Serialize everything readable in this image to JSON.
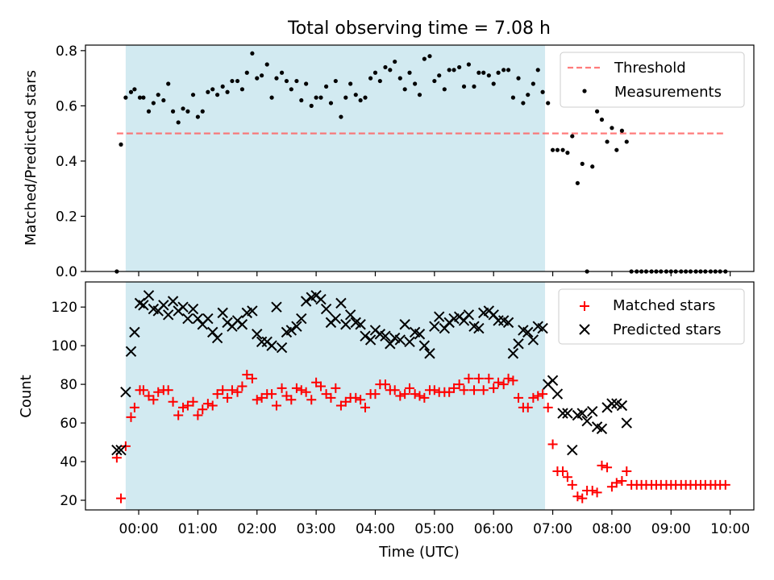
{
  "chart_data": [
    {
      "type": "scatter",
      "title": "Total observing time = 7.08 h",
      "ylabel": "Matched/Predicted stars",
      "xlabel": "",
      "xunit": "hours (UTC)",
      "xlim": [
        -0.9,
        10.4
      ],
      "ylim": [
        0,
        0.82
      ],
      "yticks": [
        0.0,
        0.2,
        0.4,
        0.6,
        0.8
      ],
      "ytick_labels": [
        "0.0",
        "0.2",
        "0.4",
        "0.6",
        "0.8"
      ],
      "shaded_interval": [
        -0.22,
        6.87
      ],
      "shaded_color": "#add8e6",
      "legend_position": "upper right",
      "series": [
        {
          "name": "Threshold",
          "kind": "dashed-line",
          "color": "#ff6666",
          "x": [
            -0.37,
            9.92
          ],
          "y": [
            0.5,
            0.5
          ]
        },
        {
          "name": "Measurements",
          "kind": "dots",
          "color": "#000000",
          "x": [
            -0.37,
            -0.3,
            -0.22,
            -0.13,
            -0.07,
            0.02,
            0.08,
            0.17,
            0.25,
            0.33,
            0.42,
            0.5,
            0.58,
            0.67,
            0.75,
            0.83,
            0.92,
            1.0,
            1.08,
            1.17,
            1.25,
            1.33,
            1.42,
            1.5,
            1.58,
            1.67,
            1.75,
            1.83,
            1.92,
            2.0,
            2.08,
            2.17,
            2.25,
            2.33,
            2.42,
            2.5,
            2.58,
            2.67,
            2.75,
            2.83,
            2.92,
            3.0,
            3.08,
            3.17,
            3.25,
            3.33,
            3.42,
            3.5,
            3.58,
            3.67,
            3.75,
            3.83,
            3.92,
            4.0,
            4.08,
            4.17,
            4.25,
            4.33,
            4.42,
            4.5,
            4.58,
            4.67,
            4.75,
            4.83,
            4.92,
            5.0,
            5.08,
            5.17,
            5.25,
            5.33,
            5.42,
            5.5,
            5.58,
            5.67,
            5.75,
            5.83,
            5.92,
            6.0,
            6.08,
            6.17,
            6.25,
            6.33,
            6.42,
            6.5,
            6.58,
            6.67,
            6.75,
            6.83,
            6.92,
            7.0,
            7.08,
            7.17,
            7.25,
            7.33,
            7.42,
            7.5,
            7.58,
            7.67,
            7.75,
            7.83,
            7.92,
            8.0,
            8.08,
            8.17,
            8.25,
            8.33,
            8.42,
            8.5,
            8.58,
            8.67,
            8.75,
            8.83,
            8.92,
            9.0,
            9.08,
            9.17,
            9.25,
            9.33,
            9.42,
            9.5,
            9.58,
            9.67,
            9.75,
            9.83,
            9.92
          ],
          "y": [
            0.0,
            0.46,
            0.63,
            0.65,
            0.66,
            0.63,
            0.63,
            0.58,
            0.61,
            0.64,
            0.62,
            0.68,
            0.58,
            0.54,
            0.59,
            0.58,
            0.64,
            0.56,
            0.58,
            0.65,
            0.66,
            0.64,
            0.67,
            0.65,
            0.69,
            0.69,
            0.66,
            0.72,
            0.79,
            0.7,
            0.71,
            0.75,
            0.63,
            0.7,
            0.72,
            0.69,
            0.66,
            0.69,
            0.62,
            0.68,
            0.6,
            0.63,
            0.63,
            0.67,
            0.61,
            0.69,
            0.56,
            0.63,
            0.68,
            0.64,
            0.62,
            0.63,
            0.7,
            0.72,
            0.69,
            0.74,
            0.73,
            0.76,
            0.7,
            0.66,
            0.72,
            0.68,
            0.64,
            0.77,
            0.78,
            0.69,
            0.71,
            0.66,
            0.73,
            0.73,
            0.74,
            0.67,
            0.75,
            0.67,
            0.72,
            0.72,
            0.71,
            0.68,
            0.72,
            0.73,
            0.73,
            0.63,
            0.7,
            0.61,
            0.64,
            0.68,
            0.73,
            0.65,
            0.61,
            0.44,
            0.44,
            0.44,
            0.43,
            0.49,
            0.32,
            0.39,
            0.0,
            0.38,
            0.58,
            0.55,
            0.47,
            0.52,
            0.44,
            0.51,
            0.47,
            0.0,
            0.0,
            0.0,
            0.0,
            0.0,
            0.0,
            0.0,
            0.0,
            0.0,
            0.0,
            0.0,
            0.0,
            0.0,
            0.0,
            0.0,
            0.0,
            0.0,
            0.0,
            0.0,
            0.0
          ]
        }
      ]
    },
    {
      "type": "scatter",
      "title": "",
      "ylabel": "Count",
      "xlabel": "Time (UTC)",
      "xunit": "hours (UTC)",
      "xlim": [
        -0.9,
        10.4
      ],
      "ylim": [
        15,
        133
      ],
      "yticks": [
        20,
        40,
        60,
        80,
        100,
        120
      ],
      "ytick_labels": [
        "20",
        "40",
        "60",
        "80",
        "100",
        "120"
      ],
      "xticks": [
        0,
        1,
        2,
        3,
        4,
        5,
        6,
        7,
        8,
        9,
        10
      ],
      "xtick_labels": [
        "00:00",
        "01:00",
        "02:00",
        "03:00",
        "04:00",
        "05:00",
        "06:00",
        "07:00",
        "08:00",
        "09:00",
        "10:00"
      ],
      "shaded_interval": [
        -0.22,
        6.87
      ],
      "shaded_color": "#add8e6",
      "legend_position": "upper right",
      "series": [
        {
          "name": "Matched stars",
          "kind": "plus",
          "color": "#ff0000",
          "x": [
            -0.37,
            -0.3,
            -0.22,
            -0.13,
            -0.07,
            0.02,
            0.08,
            0.17,
            0.25,
            0.33,
            0.42,
            0.5,
            0.58,
            0.67,
            0.75,
            0.83,
            0.92,
            1.0,
            1.08,
            1.17,
            1.25,
            1.33,
            1.42,
            1.5,
            1.58,
            1.67,
            1.75,
            1.83,
            1.92,
            2.0,
            2.08,
            2.17,
            2.25,
            2.33,
            2.42,
            2.5,
            2.58,
            2.67,
            2.75,
            2.83,
            2.92,
            3.0,
            3.08,
            3.17,
            3.25,
            3.33,
            3.42,
            3.5,
            3.58,
            3.67,
            3.75,
            3.83,
            3.92,
            4.0,
            4.08,
            4.17,
            4.25,
            4.33,
            4.42,
            4.5,
            4.58,
            4.67,
            4.75,
            4.83,
            4.92,
            5.0,
            5.08,
            5.17,
            5.25,
            5.33,
            5.42,
            5.5,
            5.58,
            5.67,
            5.75,
            5.83,
            5.92,
            6.0,
            6.08,
            6.17,
            6.25,
            6.33,
            6.42,
            6.5,
            6.58,
            6.67,
            6.75,
            6.83,
            6.92,
            7.0,
            7.08,
            7.17,
            7.25,
            7.33,
            7.42,
            7.5,
            7.58,
            7.67,
            7.75,
            7.83,
            7.92,
            8.0,
            8.08,
            8.17,
            8.25,
            8.33,
            8.42,
            8.5,
            8.58,
            8.67,
            8.75,
            8.83,
            8.92,
            9.0,
            9.08,
            9.17,
            9.25,
            9.33,
            9.42,
            9.5,
            9.58,
            9.67,
            9.75,
            9.83,
            9.92
          ],
          "y": [
            42,
            21,
            48,
            63,
            68,
            77,
            77,
            74,
            72,
            76,
            77,
            77,
            71,
            64,
            68,
            69,
            71,
            64,
            67,
            70,
            69,
            75,
            77,
            73,
            77,
            76,
            79,
            85,
            83,
            72,
            73,
            75,
            75,
            69,
            78,
            74,
            72,
            78,
            77,
            76,
            72,
            81,
            79,
            75,
            73,
            78,
            69,
            71,
            73,
            73,
            72,
            68,
            75,
            75,
            80,
            80,
            77,
            77,
            74,
            75,
            78,
            75,
            74,
            73,
            77,
            77,
            76,
            76,
            76,
            78,
            80,
            77,
            83,
            77,
            83,
            77,
            83,
            78,
            81,
            80,
            83,
            82,
            73,
            68,
            68,
            73,
            74,
            75,
            68,
            49,
            35,
            35,
            32,
            28,
            22,
            21,
            25,
            25,
            24,
            38,
            37,
            27,
            29,
            30,
            35,
            28,
            28,
            28,
            28,
            28,
            28,
            28,
            28,
            28,
            28,
            28,
            28,
            28,
            28,
            28,
            28,
            28,
            28,
            28,
            28
          ]
        },
        {
          "name": "Predicted stars",
          "kind": "cross",
          "color": "#000000",
          "x": [
            -0.37,
            -0.3,
            -0.22,
            -0.13,
            -0.07,
            0.02,
            0.08,
            0.17,
            0.25,
            0.33,
            0.42,
            0.5,
            0.58,
            0.67,
            0.75,
            0.83,
            0.92,
            1.0,
            1.08,
            1.17,
            1.25,
            1.33,
            1.42,
            1.5,
            1.58,
            1.67,
            1.75,
            1.83,
            1.92,
            2.0,
            2.08,
            2.17,
            2.25,
            2.33,
            2.42,
            2.5,
            2.58,
            2.67,
            2.75,
            2.83,
            2.92,
            3.0,
            3.08,
            3.17,
            3.25,
            3.33,
            3.42,
            3.5,
            3.58,
            3.67,
            3.75,
            3.83,
            3.92,
            4.0,
            4.08,
            4.17,
            4.25,
            4.33,
            4.42,
            4.5,
            4.58,
            4.67,
            4.75,
            4.83,
            4.92,
            5.0,
            5.08,
            5.17,
            5.25,
            5.33,
            5.42,
            5.5,
            5.58,
            5.67,
            5.75,
            5.83,
            5.92,
            6.0,
            6.08,
            6.17,
            6.25,
            6.33,
            6.42,
            6.5,
            6.58,
            6.67,
            6.75,
            6.83,
            6.92,
            7.0,
            7.08,
            7.17,
            7.25,
            7.33,
            7.42,
            7.5,
            7.58,
            7.67,
            7.75,
            7.83,
            7.92,
            8.0,
            8.08,
            8.17,
            8.25
          ],
          "y": [
            46,
            46,
            76,
            97,
            107,
            122,
            121,
            126,
            119,
            118,
            121,
            116,
            123,
            118,
            120,
            114,
            119,
            114,
            111,
            114,
            107,
            104,
            117,
            112,
            110,
            113,
            111,
            117,
            118,
            106,
            102,
            102,
            100,
            120,
            99,
            107,
            108,
            110,
            114,
            123,
            125,
            126,
            124,
            119,
            112,
            114,
            122,
            111,
            116,
            112,
            111,
            105,
            103,
            108,
            106,
            105,
            101,
            104,
            103,
            111,
            102,
            107,
            106,
            100,
            96,
            110,
            115,
            109,
            112,
            114,
            115,
            113,
            116,
            110,
            109,
            117,
            118,
            116,
            113,
            113,
            112,
            96,
            101,
            108,
            107,
            103,
            110,
            109,
            80,
            82,
            75,
            65,
            65,
            46,
            64,
            65,
            61,
            66,
            58,
            57,
            68,
            70,
            70,
            69,
            60
          ]
        }
      ]
    }
  ]
}
